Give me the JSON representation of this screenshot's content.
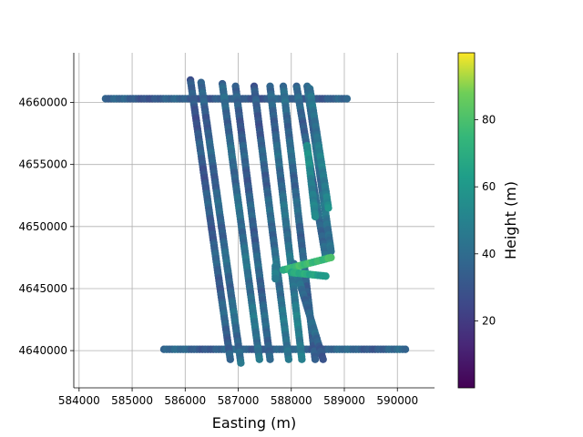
{
  "chart_data": {
    "type": "scatter",
    "title": "",
    "xlabel": "Easting (m)",
    "ylabel": "",
    "xlim": [
      583900,
      590700
    ],
    "ylim": [
      4637000,
      4664000
    ],
    "x_ticks": [
      584000,
      585000,
      586000,
      587000,
      588000,
      589000,
      590000
    ],
    "y_ticks": [
      4640000,
      4645000,
      4650000,
      4655000,
      4660000
    ],
    "grid": true,
    "colorbar": {
      "label": "Height (m)",
      "colormap": "viridis",
      "range": [
        0,
        100
      ],
      "ticks": [
        20,
        40,
        60,
        80
      ]
    },
    "flight_lines": [
      {
        "kind": "tie",
        "x0": 584500,
        "y0": 4660300,
        "x1": 589050,
        "y1": 4660300,
        "h0": 33,
        "h1": 33
      },
      {
        "kind": "tie",
        "x0": 585600,
        "y0": 4640100,
        "x1": 590150,
        "y1": 4640100,
        "h0": 35,
        "h1": 35
      },
      {
        "kind": "line",
        "x0": 586100,
        "y0": 4661800,
        "x1": 586850,
        "y1": 4639300,
        "h0": 30,
        "h1": 36
      },
      {
        "kind": "line",
        "x0": 586300,
        "y0": 4661600,
        "x1": 587050,
        "y1": 4639000,
        "h0": 33,
        "h1": 40
      },
      {
        "kind": "line",
        "x0": 586700,
        "y0": 4661500,
        "x1": 587400,
        "y1": 4639300,
        "h0": 36,
        "h1": 44
      },
      {
        "kind": "line",
        "x0": 586950,
        "y0": 4661300,
        "x1": 587600,
        "y1": 4639300,
        "h0": 32,
        "h1": 38
      },
      {
        "kind": "line",
        "x0": 587300,
        "y0": 4661300,
        "x1": 587950,
        "y1": 4639300,
        "h0": 30,
        "h1": 46
      },
      {
        "kind": "line",
        "x0": 587600,
        "y0": 4661300,
        "x1": 588200,
        "y1": 4639300,
        "h0": 34,
        "h1": 50
      },
      {
        "kind": "line",
        "x0": 587850,
        "y0": 4661300,
        "x1": 588450,
        "y1": 4639300,
        "h0": 38,
        "h1": 36
      },
      {
        "kind": "line",
        "x0": 588100,
        "y0": 4661300,
        "x1": 588650,
        "y1": 4647500,
        "h0": 35,
        "h1": 40
      },
      {
        "kind": "line",
        "x0": 588050,
        "y0": 4647000,
        "x1": 588600,
        "y1": 4639300,
        "h0": 42,
        "h1": 34
      },
      {
        "kind": "line",
        "x0": 588300,
        "y0": 4661300,
        "x1": 588750,
        "y1": 4648000,
        "h0": 36,
        "h1": 44
      },
      {
        "kind": "line",
        "x0": 588350,
        "y0": 4661100,
        "x1": 588700,
        "y1": 4651500,
        "h0": 40,
        "h1": 52
      },
      {
        "kind": "line",
        "x0": 588300,
        "y0": 4656500,
        "x1": 588450,
        "y1": 4650800,
        "h0": 55,
        "h1": 48
      },
      {
        "kind": "line",
        "x0": 587850,
        "y0": 4646500,
        "x1": 588750,
        "y1": 4647500,
        "h0": 70,
        "h1": 82
      },
      {
        "kind": "line",
        "x0": 588000,
        "y0": 4646300,
        "x1": 588650,
        "y1": 4646000,
        "h0": 68,
        "h1": 62
      },
      {
        "kind": "line",
        "x0": 587700,
        "y0": 4646800,
        "x1": 587700,
        "y1": 4645800,
        "h0": 45,
        "h1": 45
      }
    ]
  }
}
